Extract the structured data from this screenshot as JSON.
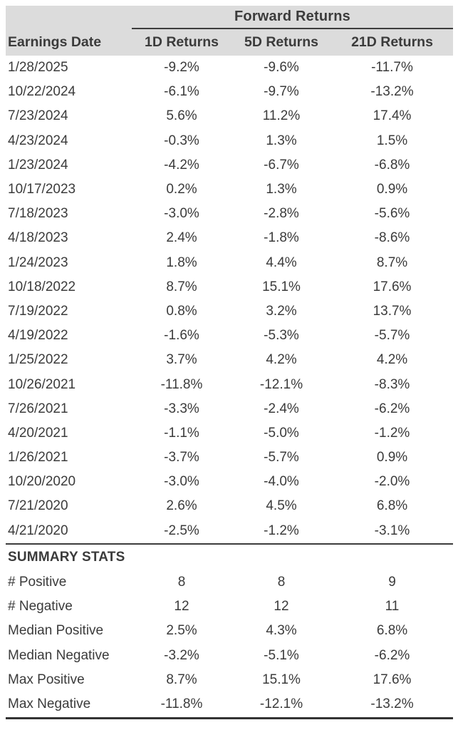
{
  "chart_data": {
    "type": "table",
    "group_header": "Forward Returns",
    "columns": [
      "Earnings Date",
      "1D Returns",
      "5D Returns",
      "21D Returns"
    ],
    "rows": [
      [
        "1/28/2025",
        "-9.2%",
        "-9.6%",
        "-11.7%"
      ],
      [
        "10/22/2024",
        "-6.1%",
        "-9.7%",
        "-13.2%"
      ],
      [
        "7/23/2024",
        "5.6%",
        "11.2%",
        "17.4%"
      ],
      [
        "4/23/2024",
        "-0.3%",
        "1.3%",
        "1.5%"
      ],
      [
        "1/23/2024",
        "-4.2%",
        "-6.7%",
        "-6.8%"
      ],
      [
        "10/17/2023",
        "0.2%",
        "1.3%",
        "0.9%"
      ],
      [
        "7/18/2023",
        "-3.0%",
        "-2.8%",
        "-5.6%"
      ],
      [
        "4/18/2023",
        "2.4%",
        "-1.8%",
        "-8.6%"
      ],
      [
        "1/24/2023",
        "1.8%",
        "4.4%",
        "8.7%"
      ],
      [
        "10/18/2022",
        "8.7%",
        "15.1%",
        "17.6%"
      ],
      [
        "7/19/2022",
        "0.8%",
        "3.2%",
        "13.7%"
      ],
      [
        "4/19/2022",
        "-1.6%",
        "-5.3%",
        "-5.7%"
      ],
      [
        "1/25/2022",
        "3.7%",
        "4.2%",
        "4.2%"
      ],
      [
        "10/26/2021",
        "-11.8%",
        "-12.1%",
        "-8.3%"
      ],
      [
        "7/26/2021",
        "-3.3%",
        "-2.4%",
        "-6.2%"
      ],
      [
        "4/20/2021",
        "-1.1%",
        "-5.0%",
        "-1.2%"
      ],
      [
        "1/26/2021",
        "-3.7%",
        "-5.7%",
        "0.9%"
      ],
      [
        "10/20/2020",
        "-3.0%",
        "-4.0%",
        "-2.0%"
      ],
      [
        "7/21/2020",
        "2.6%",
        "4.5%",
        "6.8%"
      ],
      [
        "4/21/2020",
        "-2.5%",
        "-1.2%",
        "-3.1%"
      ]
    ],
    "summary": {
      "title": "SUMMARY STATS",
      "rows": [
        [
          "# Positive",
          "8",
          "8",
          "9"
        ],
        [
          "# Negative",
          "12",
          "12",
          "11"
        ],
        [
          "Median Positive",
          "2.5%",
          "4.3%",
          "6.8%"
        ],
        [
          "Median Negative",
          "-3.2%",
          "-5.1%",
          "-6.2%"
        ],
        [
          "Max Positive",
          "8.7%",
          "15.1%",
          "17.6%"
        ],
        [
          "Max Negative",
          "-11.8%",
          "-12.1%",
          "-13.2%"
        ]
      ]
    },
    "colors": {
      "header_bg": "#dcdcdc",
      "text": "#3b3b3b",
      "rule": "#3c3c3c"
    }
  }
}
